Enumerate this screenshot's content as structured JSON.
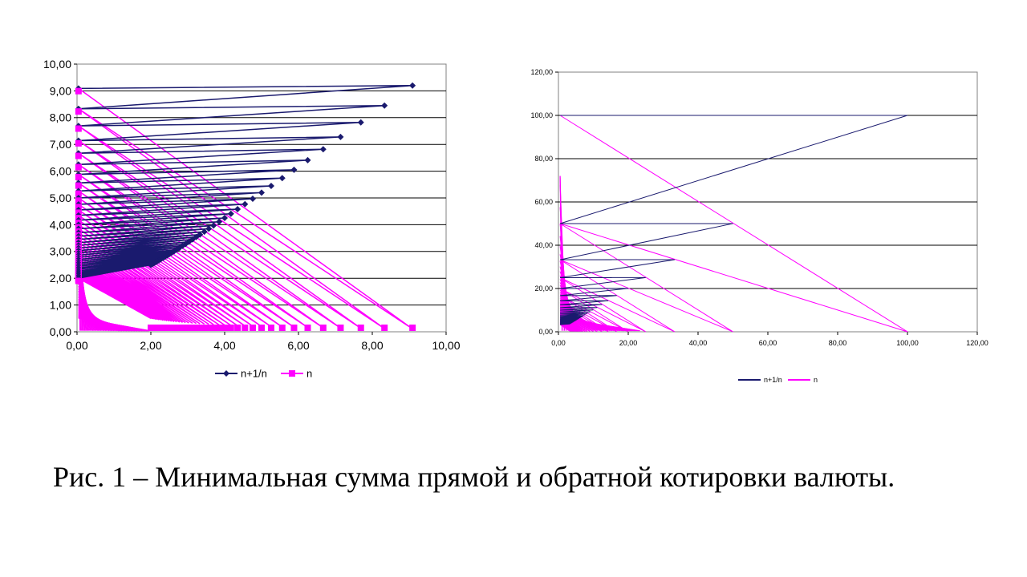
{
  "caption": "Рис. 1 – Минимальная сумма прямой и обратной котировки валюты.",
  "chart_data": [
    {
      "type": "line",
      "description_rule": "each series is a zigzag through points (x_i, y_i); n+1/n: points (n_i, 1/n_i) alternating with (~0.1, n_i); n: points (1/n_i, n_i)-style pairs",
      "xlim": [
        0,
        10
      ],
      "ylim": [
        0,
        10
      ],
      "xticks": [
        "0,00",
        "2,00",
        "4,00",
        "6,00",
        "8,00",
        "10,00"
      ],
      "yticks": [
        "0,00",
        "1,00",
        "2,00",
        "3,00",
        "4,00",
        "5,00",
        "6,00",
        "7,00",
        "8,00",
        "9,00",
        "10,00"
      ],
      "grid": "horizontal",
      "legend": "bottom",
      "series": [
        {
          "name": "n+1/n",
          "color": "#1a1a6e",
          "marker": "diamond"
        },
        {
          "name": "n",
          "color": "#ff00ff",
          "marker": "square"
        }
      ],
      "n_values": [
        9.09,
        8.33,
        7.69,
        7.14,
        6.67,
        6.25,
        5.88,
        5.56,
        5.26,
        5.0,
        4.76,
        4.55,
        4.35,
        4.17,
        4.0,
        3.85,
        3.7,
        3.57,
        3.45,
        3.33,
        3.23,
        3.13,
        3.03,
        2.94,
        2.86,
        2.78,
        2.7,
        2.63,
        2.56,
        2.5,
        2.44,
        2.38,
        2.33,
        2.27,
        2.22,
        2.17,
        2.13,
        2.08,
        2.04,
        2.0
      ]
    },
    {
      "type": "line",
      "xlim": [
        0,
        120
      ],
      "ylim": [
        0,
        120
      ],
      "xticks": [
        "0,00",
        "20,00",
        "40,00",
        "60,00",
        "80,00",
        "100,00",
        "120,00"
      ],
      "yticks": [
        "0,00",
        "20,00",
        "40,00",
        "60,00",
        "80,00",
        "100,00",
        "120,00"
      ],
      "grid": "horizontal",
      "legend": "bottom",
      "series": [
        {
          "name": "n+1/n",
          "color": "#1a1a6e"
        },
        {
          "name": "n",
          "color": "#ff00ff"
        }
      ],
      "n_values": [
        100,
        50,
        33.3,
        25,
        20,
        16.7,
        14.3,
        12.5,
        11.1,
        10,
        9.1,
        8.3,
        7.7,
        7.1,
        6.7,
        6.3,
        5.9,
        5.6,
        5.3,
        5,
        4.8,
        4.5,
        4.3,
        4.2,
        4,
        3.8,
        3.7,
        3.6,
        3.4,
        3.3
      ]
    }
  ]
}
